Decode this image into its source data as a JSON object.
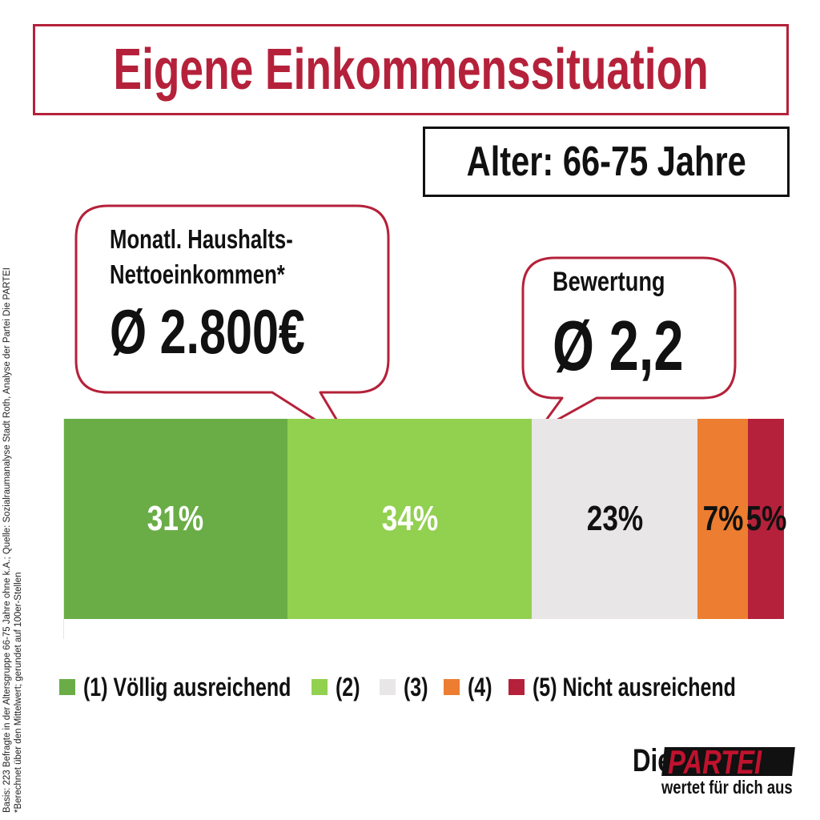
{
  "title": "Eigene Einkommenssituation",
  "subtitle": "Alter: 66-75 Jahre",
  "income_callout": {
    "label_line1": "Monatl. Haushalts-",
    "label_line2": "Nettoeinkommen*",
    "value": "Ø 2.800€"
  },
  "rating_callout": {
    "label": "Bewertung",
    "value": "Ø 2,2"
  },
  "source_note": {
    "line1": "Basis: 223 Befragte in der Altersgruppe 66-75 Jahre ohne k.A.; Quelle: Sozialraumanalyse Stadt Roth, Analyse der Partei Die PARTEI",
    "line2": "*Berechnet über den Mittelwert; gerundet auf 100er-Stellen"
  },
  "logo": {
    "die": "Die",
    "partei": "PARTEI",
    "slogan": "wertet für dich aus"
  },
  "chart_data": {
    "type": "bar",
    "orientation": "horizontal-stacked-100",
    "categories": [
      "(1) Völlig ausreichend",
      "(2)",
      "(3)",
      "(4)",
      "(5) Nicht ausreichend"
    ],
    "values": [
      31,
      34,
      23,
      7,
      5
    ],
    "labels": [
      "31%",
      "34%",
      "23%",
      "7%",
      "5%"
    ],
    "colors": [
      "#6aad46",
      "#92d050",
      "#e8e6e6",
      "#ed7d31",
      "#b5213a"
    ],
    "label_colors": [
      "#ffffff",
      "#ffffff",
      "#111111",
      "#111111",
      "#111111"
    ],
    "legend_position": "bottom"
  }
}
